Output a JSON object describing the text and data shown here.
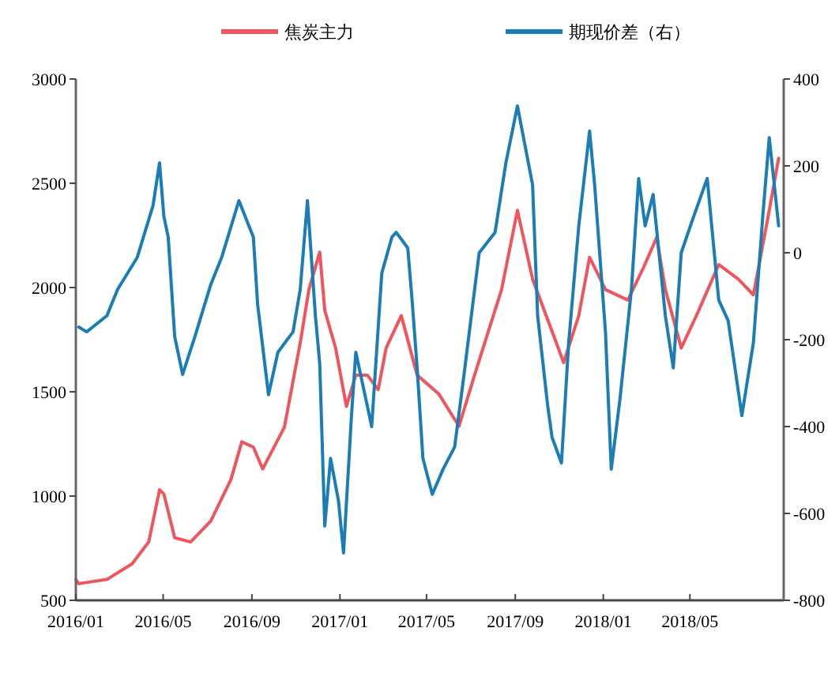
{
  "chart_data": {
    "type": "line",
    "legend": "top",
    "grid": false,
    "marker": "none",
    "line_style": "solid",
    "xlim": [
      "2016-01-01",
      "2018-09-08"
    ],
    "xticks": [
      {
        "value": "2016-01-01",
        "label": "2016/01"
      },
      {
        "value": "2016-05-01",
        "label": "2016/05"
      },
      {
        "value": "2016-09-01",
        "label": "2016/09"
      },
      {
        "value": "2017-01-01",
        "label": "2017/01"
      },
      {
        "value": "2017-05-01",
        "label": "2017/05"
      },
      {
        "value": "2017-09-01",
        "label": "2017/09"
      },
      {
        "value": "2018-01-01",
        "label": "2018/01"
      },
      {
        "value": "2018-05-01",
        "label": "2018/05"
      }
    ],
    "ylim": [
      500,
      3000
    ],
    "yticks": [
      500,
      1000,
      1500,
      2000,
      2500,
      3000
    ],
    "y2lim": [
      -800,
      400
    ],
    "y2ticks": [
      -800,
      -600,
      -400,
      -200,
      0,
      200,
      400
    ],
    "series": [
      {
        "name": "焦炭主力",
        "color": "#f0545c",
        "x": [
          "2016-01-01",
          "2016-01-05",
          "2016-02-13",
          "2016-03-19",
          "2016-04-11",
          "2016-04-26",
          "2016-05-02",
          "2016-05-17",
          "2016-06-08",
          "2016-07-06",
          "2016-08-03",
          "2016-08-18",
          "2016-09-03",
          "2016-09-16",
          "2016-10-16",
          "2016-11-07",
          "2016-11-19",
          "2016-12-04",
          "2016-12-11",
          "2016-12-26",
          "2017-01-10",
          "2017-01-23",
          "2017-02-08",
          "2017-02-23",
          "2017-03-06",
          "2017-03-27",
          "2017-04-18",
          "2017-05-18",
          "2017-06-15",
          "2017-07-07",
          "2017-08-13",
          "2017-09-04",
          "2017-09-25",
          "2017-10-22",
          "2017-11-07",
          "2017-11-28",
          "2017-12-13",
          "2018-01-04",
          "2018-02-04",
          "2018-02-25",
          "2018-03-16",
          "2018-03-28",
          "2018-04-19",
          "2018-05-10",
          "2018-06-10",
          "2018-07-07",
          "2018-07-28",
          "2018-08-19",
          "2018-09-01"
        ],
        "values": [
          600,
          580,
          600,
          675,
          780,
          1030,
          1010,
          800,
          780,
          880,
          1080,
          1260,
          1235,
          1130,
          1330,
          1735,
          1990,
          2170,
          1890,
          1710,
          1430,
          1580,
          1580,
          1510,
          1710,
          1865,
          1580,
          1490,
          1335,
          1585,
          1990,
          2370,
          2040,
          1790,
          1640,
          1865,
          2145,
          1990,
          1940,
          2090,
          2240,
          1990,
          1710,
          1865,
          2110,
          2040,
          1965,
          2370,
          2620
        ]
      },
      {
        "name": "期现价差（右）",
        "color": "#1a7db5",
        "axis": "y2",
        "x": [
          "2016-01-05",
          "2016-01-16",
          "2016-02-13",
          "2016-02-28",
          "2016-03-26",
          "2016-04-17",
          "2016-04-26",
          "2016-05-02",
          "2016-05-08",
          "2016-05-17",
          "2016-05-28",
          "2016-06-14",
          "2016-07-06",
          "2016-07-21",
          "2016-08-14",
          "2016-09-03",
          "2016-09-09",
          "2016-09-24",
          "2016-10-07",
          "2016-10-28",
          "2016-11-07",
          "2016-11-17",
          "2016-11-28",
          "2016-12-04",
          "2016-12-11",
          "2016-12-19",
          "2016-12-30",
          "2017-01-06",
          "2017-01-17",
          "2017-01-23",
          "2017-02-08",
          "2017-02-14",
          "2017-02-28",
          "2017-03-14",
          "2017-03-20",
          "2017-04-05",
          "2017-04-11",
          "2017-04-18",
          "2017-04-26",
          "2017-05-09",
          "2017-05-24",
          "2017-06-09",
          "2017-06-22",
          "2017-07-13",
          "2017-08-04",
          "2017-08-19",
          "2017-09-04",
          "2017-09-25",
          "2017-10-02",
          "2017-10-16",
          "2017-10-22",
          "2017-11-04",
          "2017-11-14",
          "2017-11-28",
          "2017-12-13",
          "2017-12-20",
          "2018-01-04",
          "2018-01-12",
          "2018-01-24",
          "2018-02-09",
          "2018-02-19",
          "2018-02-28",
          "2018-03-11",
          "2018-03-28",
          "2018-04-08",
          "2018-04-19",
          "2018-05-04",
          "2018-05-25",
          "2018-06-10",
          "2018-06-23",
          "2018-07-12",
          "2018-07-28",
          "2018-08-10",
          "2018-08-19",
          "2018-09-01"
        ],
        "values": [
          -171,
          -182,
          -145,
          -84,
          -11,
          109,
          207,
          84,
          36,
          -193,
          -280,
          -193,
          -73,
          -11,
          120,
          36,
          -120,
          -327,
          -229,
          -182,
          -84,
          120,
          -145,
          -255,
          -629,
          -473,
          -571,
          -691,
          -375,
          -229,
          -353,
          -400,
          -47,
          36,
          47,
          11,
          -109,
          -265,
          -473,
          -556,
          -498,
          -447,
          -280,
          0,
          47,
          207,
          338,
          156,
          -145,
          -353,
          -425,
          -484,
          -207,
          62,
          280,
          156,
          -182,
          -498,
          -338,
          -84,
          171,
          62,
          134,
          -145,
          -265,
          0,
          73,
          171,
          -109,
          -156,
          -375,
          -207,
          84,
          265,
          62
        ]
      }
    ]
  }
}
